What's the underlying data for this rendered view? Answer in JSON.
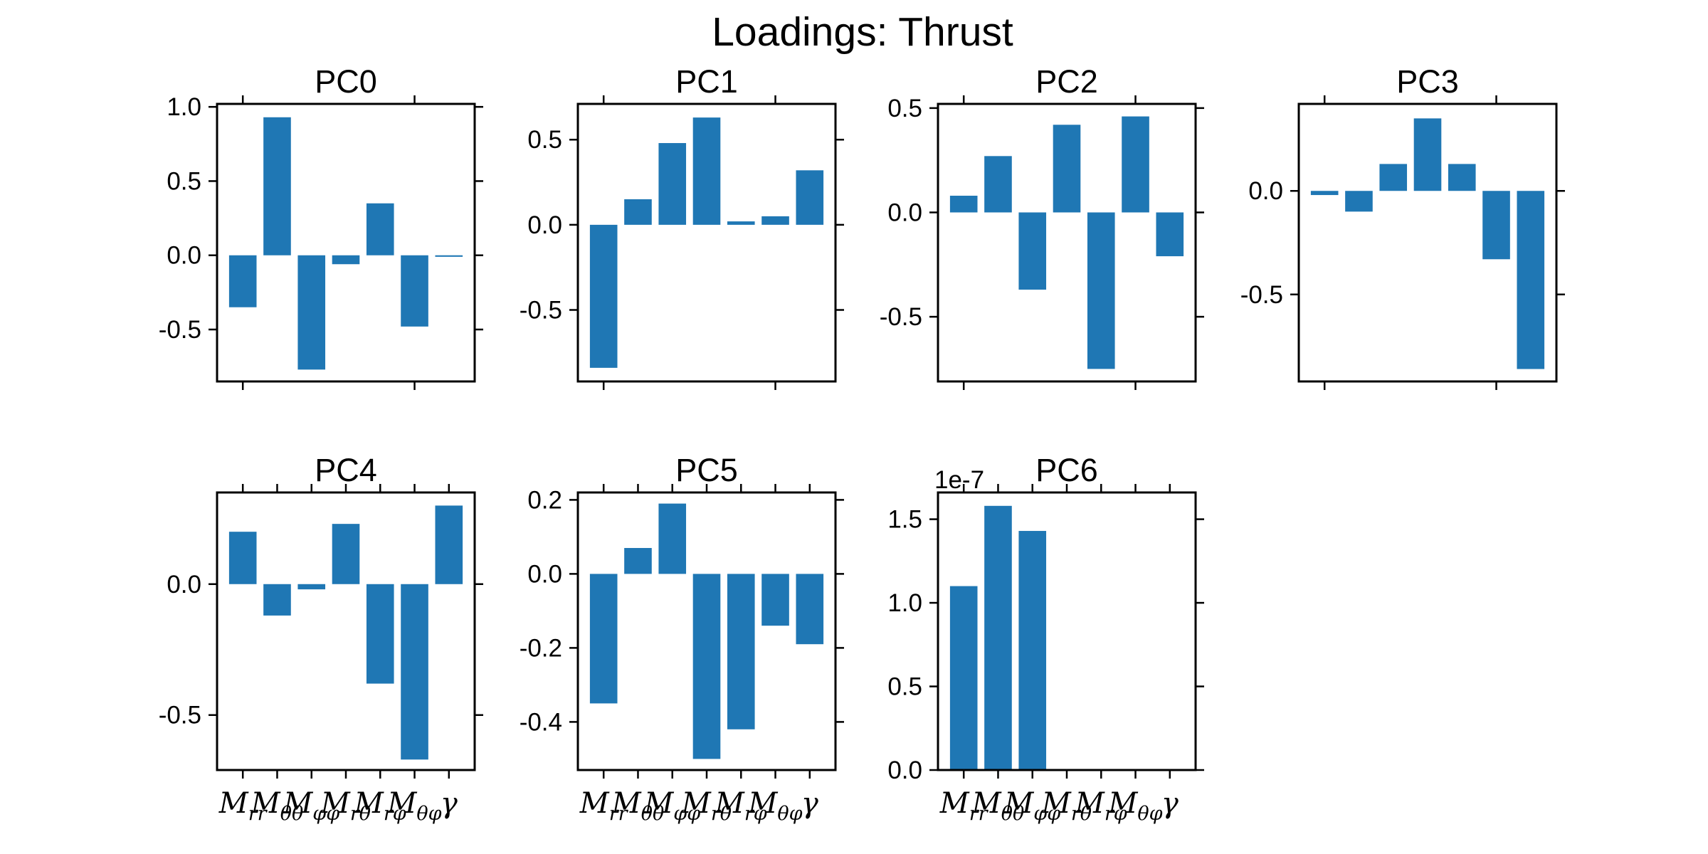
{
  "chart_data": {
    "title": "Loadings: Thrust",
    "type": "bar",
    "color": "#1f77b4",
    "categories": [
      "M_rr",
      "M_θθ",
      "M_φφ",
      "M_rθ",
      "M_rφ",
      "M_θφ",
      "γ"
    ],
    "subplots": [
      {
        "title": "PC0",
        "values": [
          -0.35,
          0.93,
          -0.77,
          -0.06,
          0.35,
          -0.48,
          -0.01
        ],
        "ylim": [
          -0.85,
          1.02
        ],
        "yticks": [
          -0.5,
          0.0,
          0.5,
          1.0
        ],
        "tick_labels": [
          "-0.5",
          "0.0",
          "0.5",
          "1.0"
        ],
        "offset_text": ""
      },
      {
        "title": "PC1",
        "values": [
          -0.84,
          0.15,
          0.48,
          0.63,
          0.02,
          0.05,
          0.32
        ],
        "ylim": [
          -0.92,
          0.71
        ],
        "yticks": [
          -0.5,
          0.0,
          0.5
        ],
        "tick_labels": [
          "-0.5",
          "0.0",
          "0.5"
        ],
        "offset_text": ""
      },
      {
        "title": "PC2",
        "values": [
          0.08,
          0.27,
          -0.37,
          0.42,
          -0.75,
          0.46,
          -0.21
        ],
        "ylim": [
          -0.81,
          0.52
        ],
        "yticks": [
          -0.5,
          0.0,
          0.5
        ],
        "tick_labels": [
          "-0.5",
          "0.0",
          "0.5"
        ],
        "offset_text": ""
      },
      {
        "title": "PC3",
        "values": [
          -0.02,
          -0.1,
          0.13,
          0.35,
          0.13,
          -0.33,
          -0.86
        ],
        "ylim": [
          -0.92,
          0.42
        ],
        "yticks": [
          -0.5,
          0.0
        ],
        "tick_labels": [
          "-0.5",
          "0.0"
        ],
        "offset_text": ""
      },
      {
        "title": "PC4",
        "values": [
          0.2,
          -0.12,
          -0.02,
          0.23,
          -0.38,
          -0.67,
          0.3
        ],
        "ylim": [
          -0.71,
          0.35
        ],
        "yticks": [
          -0.5,
          0.0
        ],
        "tick_labels": [
          "-0.5",
          "0.0"
        ],
        "offset_text": ""
      },
      {
        "title": "PC5",
        "values": [
          -0.35,
          0.07,
          0.19,
          -0.5,
          -0.42,
          -0.14,
          -0.19
        ],
        "ylim": [
          -0.53,
          0.22
        ],
        "yticks": [
          -0.4,
          -0.2,
          0.0,
          0.2
        ],
        "tick_labels": [
          "-0.4",
          "-0.2",
          "0.0",
          "0.2"
        ],
        "offset_text": ""
      },
      {
        "title": "PC6",
        "values": [
          1.1,
          1.58,
          1.43,
          0.0,
          0.0,
          0.0,
          0.0
        ],
        "ylim": [
          0.0,
          1.66
        ],
        "yticks": [
          0.0,
          0.5,
          1.0,
          1.5
        ],
        "tick_labels": [
          "0.0",
          "0.5",
          "1.0",
          "1.5"
        ],
        "offset_text": "1e-7"
      }
    ]
  }
}
